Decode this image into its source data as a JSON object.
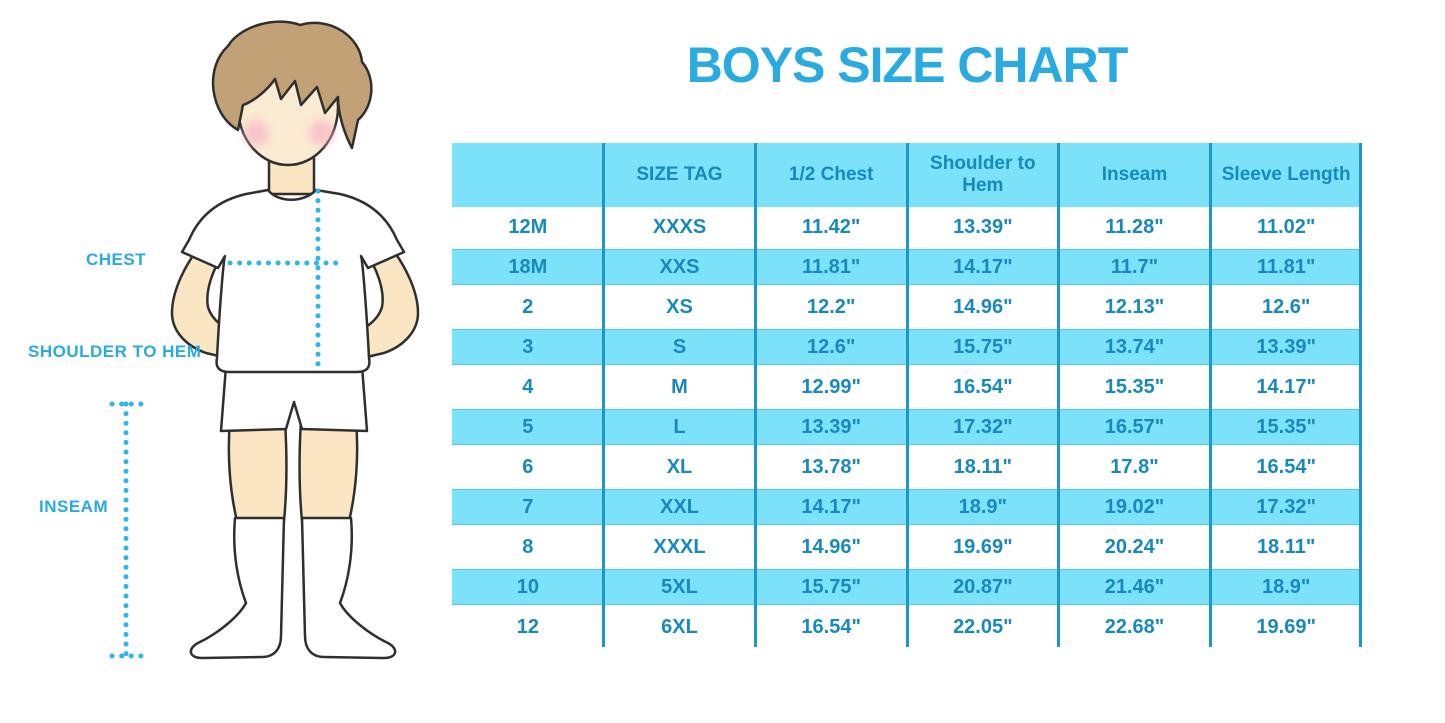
{
  "title": "BOYS SIZE CHART",
  "figure": {
    "labels": {
      "chest": "CHEST",
      "shoulder_to_hem": "SHOULDER TO HEM",
      "inseam": "INSEAM"
    }
  },
  "colors": {
    "accent": "#29ABE2",
    "table_text": "#1789BE",
    "band": "#7CE2FA",
    "band_edge": "#4FCBEE",
    "line": "#1E96C8",
    "dots": "#2EB5EA",
    "skin": "#FAE6C3",
    "hair": "#C2A177",
    "cheek": "#F5AEC3",
    "outline": "#2F2F2F"
  },
  "chart_data": {
    "type": "table",
    "title": "BOYS SIZE CHART",
    "columns": [
      "",
      "SIZE TAG",
      "1/2 Chest",
      "Shoulder to Hem",
      "Inseam",
      "Sleeve Length"
    ],
    "rows": [
      [
        "12M",
        "XXXS",
        "11.42\"",
        "13.39\"",
        "11.28\"",
        "11.02\""
      ],
      [
        "18M",
        "XXS",
        "11.81\"",
        "14.17\"",
        "11.7\"",
        "11.81\""
      ],
      [
        "2",
        "XS",
        "12.2\"",
        "14.96\"",
        "12.13\"",
        "12.6\""
      ],
      [
        "3",
        "S",
        "12.6\"",
        "15.75\"",
        "13.74\"",
        "13.39\""
      ],
      [
        "4",
        "M",
        "12.99\"",
        "16.54\"",
        "15.35\"",
        "14.17\""
      ],
      [
        "5",
        "L",
        "13.39\"",
        "17.32\"",
        "16.57\"",
        "15.35\""
      ],
      [
        "6",
        "XL",
        "13.78\"",
        "18.11\"",
        "17.8\"",
        "16.54\""
      ],
      [
        "7",
        "XXL",
        "14.17\"",
        "18.9\"",
        "19.02\"",
        "17.32\""
      ],
      [
        "8",
        "XXXL",
        "14.96\"",
        "19.69\"",
        "20.24\"",
        "18.11\""
      ],
      [
        "10",
        "5XL",
        "15.75\"",
        "20.87\"",
        "21.46\"",
        "18.9\""
      ],
      [
        "12",
        "6XL",
        "16.54\"",
        "22.05\"",
        "22.68\"",
        "19.69\""
      ]
    ]
  }
}
